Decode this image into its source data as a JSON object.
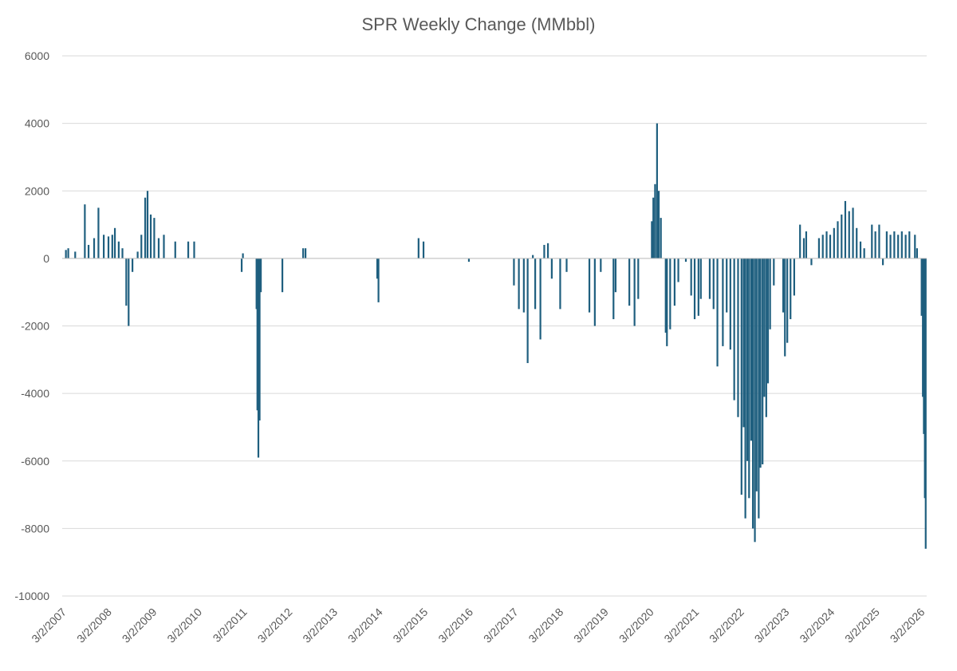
{
  "chart_data": {
    "type": "bar",
    "title": "SPR Weekly Change (MMbbl)",
    "xlabel": "",
    "ylabel": "",
    "ylim": [
      -10000,
      6000
    ],
    "yticks": [
      "6000",
      "4000",
      "2000",
      "0",
      "-2000",
      "-4000",
      "-6000",
      "-8000",
      "-10000"
    ],
    "grid": true,
    "legend": "none",
    "x_tick_labels": [
      "3/2/2007",
      "3/2/2008",
      "3/2/2009",
      "3/2/2010",
      "3/2/2011",
      "3/2/2012",
      "3/2/2013",
      "3/2/2014",
      "3/2/2015",
      "3/2/2016",
      "3/2/2017",
      "3/2/2018",
      "3/2/2019",
      "3/2/2020",
      "3/2/2021",
      "3/2/2022",
      "3/2/2023",
      "3/2/2024",
      "3/2/2025",
      "3/2/2026"
    ],
    "x_range": [
      "3/2/2007",
      "4/20/2026"
    ],
    "series": [
      {
        "color": "#1f5f7f",
        "points": [
          [
            "4/1/2007",
            250
          ],
          [
            "4/20/2007",
            300
          ],
          [
            "6/15/2007",
            200
          ],
          [
            "9/1/2007",
            1600
          ],
          [
            "10/1/2007",
            400
          ],
          [
            "11/15/2007",
            600
          ],
          [
            "12/20/2007",
            1500
          ],
          [
            "2/1/2008",
            700
          ],
          [
            "3/10/2008",
            650
          ],
          [
            "4/10/2008",
            700
          ],
          [
            "5/1/2008",
            900
          ],
          [
            "6/1/2008",
            500
          ],
          [
            "7/1/2008",
            300
          ],
          [
            "8/1/2008",
            -1400
          ],
          [
            "8/20/2008",
            -2000
          ],
          [
            "9/20/2008",
            -400
          ],
          [
            "11/1/2008",
            200
          ],
          [
            "12/1/2008",
            700
          ],
          [
            "1/1/2009",
            1800
          ],
          [
            "1/20/2009",
            2000
          ],
          [
            "2/15/2009",
            1300
          ],
          [
            "3/15/2009",
            1200
          ],
          [
            "4/20/2009",
            600
          ],
          [
            "6/1/2009",
            700
          ],
          [
            "9/1/2009",
            500
          ],
          [
            "12/15/2009",
            500
          ],
          [
            "2/1/2010",
            500
          ],
          [
            "3/2/2011",
            150
          ],
          [
            "2/20/2011",
            -400
          ],
          [
            "6/20/2011",
            -1500
          ],
          [
            "6/27/2011",
            -4500
          ],
          [
            "7/5/2011",
            -5900
          ],
          [
            "7/15/2011",
            -4800
          ],
          [
            "7/25/2011",
            -1000
          ],
          [
            "1/15/2012",
            -1000
          ],
          [
            "7/1/2012",
            300
          ],
          [
            "7/20/2012",
            300
          ],
          [
            "3/2/2014",
            -1300
          ],
          [
            "2/20/2014",
            -600
          ],
          [
            "1/20/2015",
            600
          ],
          [
            "3/1/2015",
            500
          ],
          [
            "3/2/2016",
            -100
          ],
          [
            "3/1/2017",
            -800
          ],
          [
            "4/10/2017",
            -1500
          ],
          [
            "5/20/2017",
            -1600
          ],
          [
            "6/20/2017",
            -3100
          ],
          [
            "8/1/2017",
            100
          ],
          [
            "8/20/2017",
            -1500
          ],
          [
            "10/1/2017",
            -2400
          ],
          [
            "11/1/2017",
            400
          ],
          [
            "12/1/2017",
            450
          ],
          [
            "1/1/2018",
            -600
          ],
          [
            "3/10/2018",
            -1500
          ],
          [
            "5/1/2018",
            -400
          ],
          [
            "11/1/2018",
            -1600
          ],
          [
            "12/15/2018",
            -2000
          ],
          [
            "2/1/2019",
            -400
          ],
          [
            "5/15/2019",
            -1800
          ],
          [
            "6/1/2019",
            -1000
          ],
          [
            "9/20/2019",
            -1400
          ],
          [
            "11/1/2019",
            -2000
          ],
          [
            "12/1/2019",
            -1200
          ],
          [
            "3/20/2020",
            1100
          ],
          [
            "4/1/2020",
            1800
          ],
          [
            "4/15/2020",
            2200
          ],
          [
            "5/1/2020",
            4000
          ],
          [
            "5/15/2020",
            2000
          ],
          [
            "6/1/2020",
            1200
          ],
          [
            "7/10/2020",
            -2200
          ],
          [
            "7/20/2020",
            -2600
          ],
          [
            "8/15/2020",
            -2100
          ],
          [
            "9/20/2020",
            -1400
          ],
          [
            "10/20/2020",
            -700
          ],
          [
            "12/20/2020",
            -100
          ],
          [
            "2/1/2021",
            -1100
          ],
          [
            "3/1/2021",
            -1800
          ],
          [
            "4/1/2021",
            -1700
          ],
          [
            "4/20/2021",
            -1200
          ],
          [
            "7/1/2021",
            -1200
          ],
          [
            "8/1/2021",
            -1500
          ],
          [
            "9/1/2021",
            -3200
          ],
          [
            "10/15/2021",
            -2600
          ],
          [
            "11/15/2021",
            -1600
          ],
          [
            "12/15/2021",
            -2700
          ],
          [
            "1/15/2022",
            -4200
          ],
          [
            "2/15/2022",
            -4700
          ],
          [
            "3/15/2022",
            -7000
          ],
          [
            "4/1/2022",
            -5000
          ],
          [
            "4/15/2022",
            -7700
          ],
          [
            "5/1/2022",
            -6000
          ],
          [
            "5/15/2022",
            -7100
          ],
          [
            "6/1/2022",
            -5400
          ],
          [
            "6/15/2022",
            -8000
          ],
          [
            "7/1/2022",
            -8400
          ],
          [
            "7/15/2022",
            -6900
          ],
          [
            "8/1/2022",
            -7700
          ],
          [
            "8/15/2022",
            -6200
          ],
          [
            "9/1/2022",
            -6100
          ],
          [
            "9/15/2022",
            -4100
          ],
          [
            "10/1/2022",
            -4700
          ],
          [
            "10/15/2022",
            -3700
          ],
          [
            "11/1/2022",
            -2100
          ],
          [
            "12/1/2022",
            -800
          ],
          [
            "2/15/2023",
            -1600
          ],
          [
            "3/1/2023",
            -2900
          ],
          [
            "3/20/2023",
            -2500
          ],
          [
            "4/15/2023",
            -1800
          ],
          [
            "5/15/2023",
            -1100
          ],
          [
            "7/1/2023",
            1000
          ],
          [
            "8/1/2023",
            600
          ],
          [
            "8/20/2023",
            800
          ],
          [
            "10/1/2023",
            -200
          ],
          [
            "12/1/2023",
            600
          ],
          [
            "1/1/2024",
            700
          ],
          [
            "2/1/2024",
            800
          ],
          [
            "3/1/2024",
            700
          ],
          [
            "4/1/2024",
            900
          ],
          [
            "5/1/2024",
            1100
          ],
          [
            "6/1/2024",
            1300
          ],
          [
            "7/1/2024",
            1700
          ],
          [
            "8/1/2024",
            1400
          ],
          [
            "9/1/2024",
            1500
          ],
          [
            "10/1/2024",
            900
          ],
          [
            "11/1/2024",
            500
          ],
          [
            "12/1/2024",
            300
          ],
          [
            "2/1/2025",
            1000
          ],
          [
            "3/1/2025",
            800
          ],
          [
            "4/1/2025",
            1000
          ],
          [
            "5/1/2025",
            -200
          ],
          [
            "6/1/2025",
            800
          ],
          [
            "7/1/2025",
            700
          ],
          [
            "8/1/2025",
            800
          ],
          [
            "9/1/2025",
            700
          ],
          [
            "10/1/2025",
            800
          ],
          [
            "11/1/2025",
            700
          ],
          [
            "12/1/2025",
            800
          ],
          [
            "1/15/2026",
            700
          ],
          [
            "2/1/2026",
            300
          ],
          [
            "3/10/2026",
            -1700
          ],
          [
            "3/20/2026",
            -4100
          ],
          [
            "3/28/2026",
            -5200
          ],
          [
            "4/5/2026",
            -7100
          ],
          [
            "4/12/2026",
            -8600
          ]
        ]
      }
    ]
  }
}
